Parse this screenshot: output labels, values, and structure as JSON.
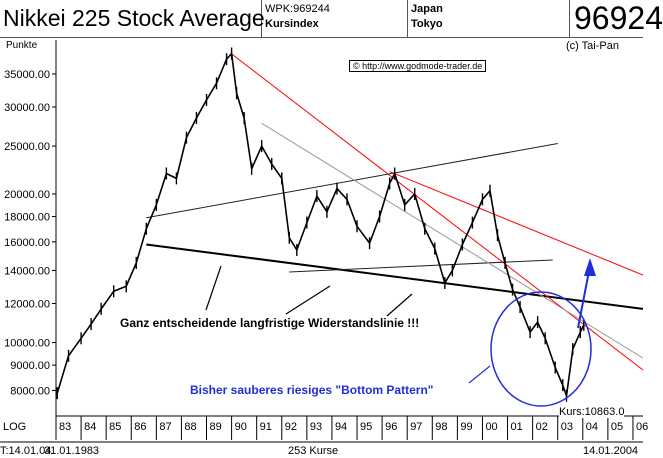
{
  "header": {
    "title": "Nikkei 225 Stock Average",
    "wpk": "WPK:969244",
    "index_type": "Kursindex",
    "country": "Japan",
    "city": "Tokyo",
    "value_display": "96924"
  },
  "copyright": "(c) Tai-Pan",
  "url_label": "© http://www.godmode-trader.de",
  "y_unit": "Punkte",
  "scale_label": "LOG",
  "annotation_resistance": "Ganz entscheidende langfristige Widerstandslinie !!!",
  "annotation_bottom": "Bisher sauberes riesiges \"Bottom Pattern\"",
  "kurs_label": "Kurs:10863.0",
  "footer": {
    "left": "T:14.01.04",
    "start": "31.01.1983",
    "count": "253 Kurse",
    "end": "14.01.2004"
  },
  "colors": {
    "price_bar": "#000000",
    "trend_red": "#ff0000",
    "trend_gray": "#999999",
    "ellipse": "#1f2fd8",
    "arrow": "#1f2fd8"
  },
  "chart_data": {
    "type": "line",
    "scale": "log",
    "y_tick_labels": [
      "35000.00",
      "30000.00",
      "25000.00",
      "20000.00",
      "18000.00",
      "16000.00",
      "14000.00",
      "12000.00",
      "10000.00",
      "9000.00",
      "8000.00"
    ],
    "y_ticks": [
      35000,
      30000,
      25000,
      20000,
      18000,
      16000,
      14000,
      12000,
      10000,
      9000,
      8000
    ],
    "x_tick_labels": [
      "83",
      "84",
      "85",
      "86",
      "87",
      "88",
      "89",
      "90",
      "91",
      "92",
      "93",
      "94",
      "95",
      "96",
      "97",
      "98",
      "99",
      "00",
      "01",
      "02",
      "03",
      "04",
      "05",
      "06"
    ],
    "x_ticks": [
      1983,
      1984,
      1985,
      1986,
      1987,
      1988,
      1989,
      1990,
      1991,
      1992,
      1993,
      1994,
      1995,
      1996,
      1997,
      1998,
      1999,
      2000,
      2001,
      2002,
      2003,
      2004,
      2005,
      2006
    ],
    "series": [
      {
        "x": [
          1983.05,
          1983.5,
          1984.0,
          1984.4,
          1984.8,
          1985.3,
          1985.8,
          1986.2,
          1986.6,
          1987.0,
          1987.4,
          1987.8,
          1988.2,
          1988.6,
          1989.0,
          1989.4,
          1989.8,
          1990.0,
          1990.2,
          1990.5,
          1990.8,
          1991.2,
          1991.6,
          1992.0,
          1992.3,
          1992.6,
          1993.0,
          1993.4,
          1993.8,
          1994.2,
          1994.6,
          1995.0,
          1995.5,
          1995.9,
          1996.3,
          1996.5,
          1996.9,
          1997.3,
          1997.7,
          1998.1,
          1998.5,
          1998.8,
          1999.2,
          1999.6,
          2000.0,
          2000.3,
          2000.6,
          2000.9,
          2001.2,
          2001.5,
          2001.9,
          2002.2,
          2002.5,
          2002.9,
          2003.2,
          2003.35,
          2003.6,
          2003.9,
          2004.04
        ],
        "y": [
          7900,
          9400,
          10200,
          10900,
          11700,
          12700,
          13000,
          14500,
          17000,
          19000,
          22000,
          21500,
          26000,
          28500,
          31000,
          33500,
          37500,
          38500,
          32000,
          28500,
          22500,
          25000,
          23000,
          21500,
          16300,
          15400,
          17500,
          19800,
          18400,
          20500,
          19500,
          17200,
          15900,
          18000,
          21000,
          22000,
          19000,
          20000,
          17000,
          15500,
          13200,
          14000,
          15800,
          17500,
          19500,
          20300,
          16500,
          14500,
          12800,
          11800,
          10500,
          11000,
          10200,
          8900,
          8200,
          7800,
          9700,
          10500,
          10863
        ]
      }
    ],
    "trendlines": [
      {
        "name": "resistance",
        "points": [
          [
            1986.6,
            15800
          ],
          [
            2006.4,
            11700
          ]
        ]
      },
      {
        "name": "red_1",
        "points": [
          [
            1989.98,
            38500
          ],
          [
            2006.4,
            8800
          ]
        ]
      },
      {
        "name": "red_2",
        "points": [
          [
            1996.3,
            22200
          ],
          [
            2006.4,
            13700
          ]
        ]
      },
      {
        "name": "upper_black",
        "points": [
          [
            1986.6,
            17900
          ],
          [
            2003.0,
            25300
          ]
        ]
      },
      {
        "name": "mid_black",
        "points": [
          [
            1992.3,
            13900
          ],
          [
            2002.8,
            14700
          ]
        ]
      },
      {
        "name": "gray",
        "points": [
          [
            1991.2,
            27800
          ],
          [
            2006.4,
            9300
          ]
        ]
      }
    ],
    "xlim": [
      1983,
      2006.4
    ],
    "ylim": [
      7100,
      41000
    ]
  }
}
